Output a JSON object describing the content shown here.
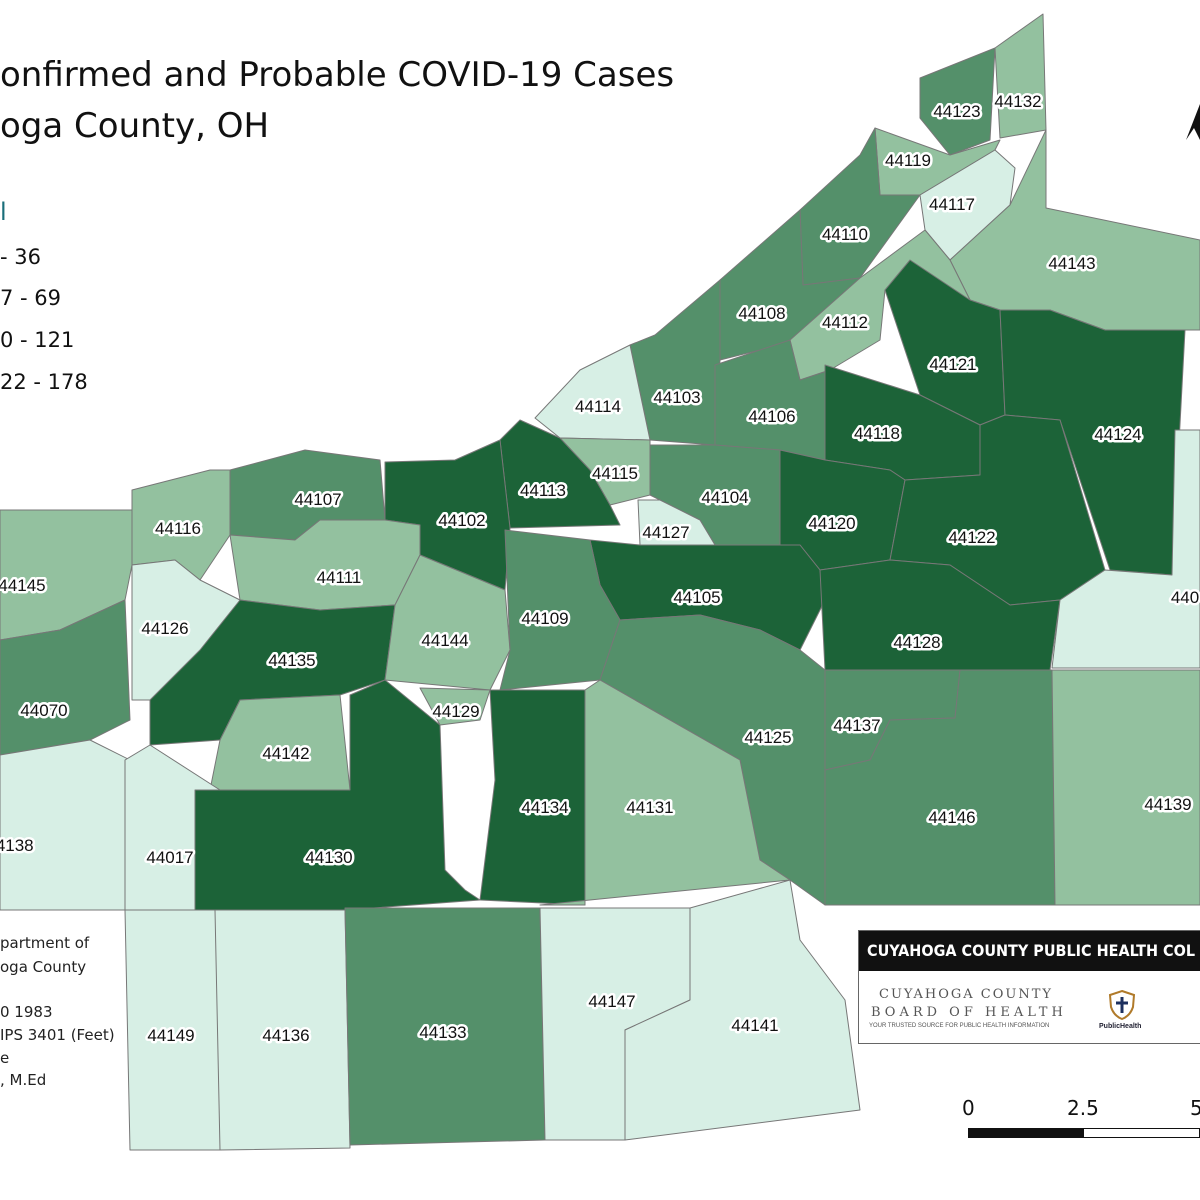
{
  "title": {
    "line1": "onfirmed and Probable COVID-19 Cases",
    "line2": "oga County, OH"
  },
  "legend": {
    "heading": "l",
    "classes": [
      {
        "label": " - 36",
        "color": "#d7efe5"
      },
      {
        "label": "7 - 69",
        "color": "#93c19f"
      },
      {
        "label": "0 - 121",
        "color": "#54906a"
      },
      {
        "label": "22 - 178",
        "color": "#1c6338"
      }
    ]
  },
  "credits": [
    "partment of",
    "oga County",
    "0 1983",
    "IPS 3401 (Feet)",
    "e",
    ", M.Ed"
  ],
  "logo": {
    "banner": "CUYAHOGA COUNTY PUBLIC HEALTH COL",
    "org_line1": "CUYAHOGA COUNTY",
    "org_line2": "BOARD OF HEALTH",
    "tagline": "YOUR TRUSTED SOURCE FOR PUBLIC HEALTH INFORMATION",
    "partner": "PublicHealth"
  },
  "scale_bar": {
    "ticks": [
      "0",
      "2.5",
      "5"
    ]
  },
  "chart_data": {
    "type": "choropleth",
    "zip_codes": [
      {
        "zip": "44123",
        "class": 3
      },
      {
        "zip": "44132",
        "class": 2
      },
      {
        "zip": "44119",
        "class": 2
      },
      {
        "zip": "44117",
        "class": 1
      },
      {
        "zip": "44110",
        "class": 3
      },
      {
        "zip": "44143",
        "class": 2
      },
      {
        "zip": "44108",
        "class": 3
      },
      {
        "zip": "44112",
        "class": 2
      },
      {
        "zip": "44121",
        "class": 4
      },
      {
        "zip": "44103",
        "class": 3
      },
      {
        "zip": "44114",
        "class": 1
      },
      {
        "zip": "44106",
        "class": 3
      },
      {
        "zip": "44118",
        "class": 4
      },
      {
        "zip": "44124",
        "class": 4
      },
      {
        "zip": "44115",
        "class": 2
      },
      {
        "zip": "44113",
        "class": 4
      },
      {
        "zip": "44104",
        "class": 3
      },
      {
        "zip": "44107",
        "class": 3
      },
      {
        "zip": "44102",
        "class": 4
      },
      {
        "zip": "44116",
        "class": 2
      },
      {
        "zip": "44127",
        "class": 1
      },
      {
        "zip": "44120",
        "class": 4
      },
      {
        "zip": "44122",
        "class": 4
      },
      {
        "zip": "44145",
        "class": 2
      },
      {
        "zip": "44111",
        "class": 2
      },
      {
        "zip": "44105",
        "class": 4
      },
      {
        "zip": "44126",
        "class": 1
      },
      {
        "zip": "44135",
        "class": 4
      },
      {
        "zip": "44144",
        "class": 2
      },
      {
        "zip": "44109",
        "class": 3
      },
      {
        "zip": "44128",
        "class": 4
      },
      {
        "zip": "44070",
        "class": 3
      },
      {
        "zip": "44129",
        "class": 2
      },
      {
        "zip": "44142",
        "class": 2
      },
      {
        "zip": "44125",
        "class": 3
      },
      {
        "zip": "44137",
        "class": 3
      },
      {
        "zip": "44134",
        "class": 4
      },
      {
        "zip": "44131",
        "class": 2
      },
      {
        "zip": "44146",
        "class": 3
      },
      {
        "zip": "44139",
        "class": 2
      },
      {
        "zip": "44138",
        "class": 1
      },
      {
        "zip": "44017",
        "class": 1
      },
      {
        "zip": "44130",
        "class": 4
      },
      {
        "zip": "44149",
        "class": 1
      },
      {
        "zip": "44136",
        "class": 1
      },
      {
        "zip": "44133",
        "class": 3
      },
      {
        "zip": "44147",
        "class": 1
      },
      {
        "zip": "44141",
        "class": 1
      },
      {
        "zip": "440",
        "class": 1
      }
    ]
  }
}
